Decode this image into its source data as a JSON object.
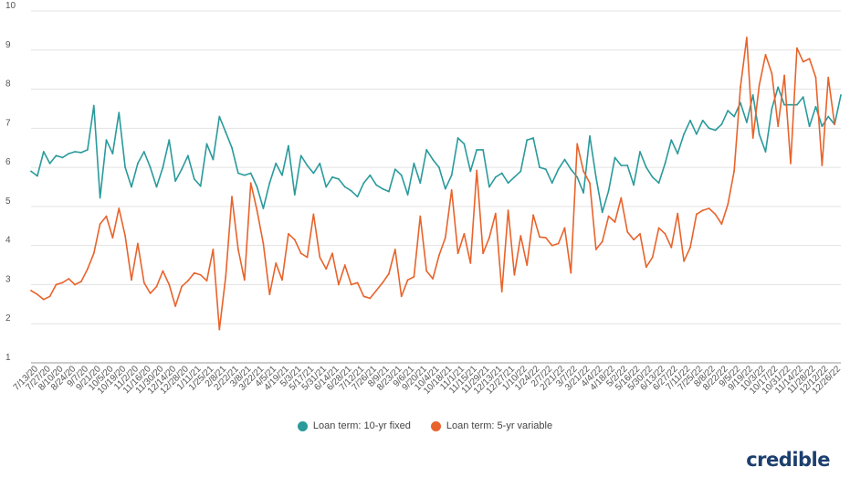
{
  "chart_data": {
    "type": "line",
    "ylim": [
      1,
      10
    ],
    "yticks": [
      1,
      2,
      3,
      4,
      5,
      6,
      7,
      8,
      9,
      10
    ],
    "grid": true,
    "legend_position": "bottom-center",
    "xtick_labels": [
      "7/13/20",
      "7/27/20",
      "8/10/20",
      "8/24/20",
      "9/7/20",
      "9/21/20",
      "10/5/20",
      "10/19/20",
      "11/2/20",
      "11/16/20",
      "11/30/20",
      "12/14/20",
      "12/28/20",
      "1/11/21",
      "1/25/21",
      "2/8/21",
      "2/22/21",
      "3/8/21",
      "3/22/21",
      "4/5/21",
      "4/19/21",
      "5/3/21",
      "5/17/21",
      "5/31/21",
      "6/14/21",
      "6/28/21",
      "7/12/21",
      "7/26/21",
      "8/9/21",
      "8/23/21",
      "9/6/21",
      "9/20/21",
      "10/4/21",
      "10/18/21",
      "11/1/21",
      "11/15/21",
      "11/29/21",
      "12/13/21",
      "12/27/21",
      "1/10/22",
      "1/24/22",
      "2/7/22",
      "2/21/22",
      "3/7/22",
      "3/21/22",
      "4/4/22",
      "4/18/22",
      "5/2/22",
      "5/16/22",
      "5/30/22",
      "6/13/22",
      "6/27/22",
      "7/11/22",
      "7/25/22",
      "8/8/22",
      "8/22/22",
      "9/5/22",
      "9/19/22",
      "10/3/22",
      "10/17/22",
      "10/31/22",
      "11/14/22",
      "11/28/22",
      "12/12/22",
      "12/26/22"
    ],
    "series": [
      {
        "name": "Loan term: 10-yr fixed",
        "color": "#2a9a9b",
        "values": [
          5.9,
          5.78,
          6.4,
          6.1,
          6.3,
          6.25,
          6.35,
          6.4,
          6.38,
          6.45,
          7.58,
          5.22,
          6.7,
          6.35,
          7.4,
          6.0,
          5.5,
          6.1,
          6.4,
          6.0,
          5.5,
          6.0,
          6.7,
          5.65,
          5.95,
          6.3,
          5.7,
          5.52,
          6.6,
          6.2,
          7.3,
          6.9,
          6.5,
          5.85,
          5.8,
          5.85,
          5.5,
          4.95,
          5.6,
          6.1,
          5.8,
          6.55,
          5.3,
          6.3,
          6.05,
          5.85,
          6.1,
          5.5,
          5.75,
          5.7,
          5.5,
          5.4,
          5.25,
          5.6,
          5.8,
          5.55,
          5.45,
          5.38,
          5.95,
          5.8,
          5.3,
          6.1,
          5.6,
          6.45,
          6.2,
          6.0,
          5.45,
          5.8,
          6.75,
          6.6,
          5.9,
          6.45,
          6.45,
          5.5,
          5.75,
          5.85,
          5.6,
          5.75,
          5.9,
          6.7,
          6.75,
          6.0,
          5.95,
          5.6,
          5.95,
          6.2,
          5.95,
          5.75,
          5.35,
          6.8,
          5.75,
          4.85,
          5.4,
          6.25,
          6.05,
          6.05,
          5.55,
          6.4,
          6.0,
          5.75,
          5.6,
          6.1,
          6.7,
          6.35,
          6.85,
          7.2,
          6.85,
          7.2,
          7.0,
          6.95,
          7.1,
          7.45,
          7.3,
          7.65,
          7.15,
          7.85,
          6.85,
          6.4,
          7.5,
          8.05,
          7.6,
          7.6,
          7.6,
          7.8,
          7.05,
          7.55,
          7.05,
          7.3,
          7.1,
          7.85
        ]
      },
      {
        "name": "Loan term: 5-yr variable",
        "color": "#e8632b",
        "values": [
          2.85,
          2.75,
          2.62,
          2.7,
          3.0,
          3.05,
          3.15,
          3.0,
          3.08,
          3.4,
          3.8,
          4.55,
          4.75,
          4.2,
          4.95,
          4.25,
          3.12,
          4.05,
          3.05,
          2.78,
          2.95,
          3.35,
          3.0,
          2.45,
          2.95,
          3.1,
          3.3,
          3.25,
          3.1,
          3.9,
          1.85,
          3.2,
          5.25,
          3.9,
          3.12,
          5.6,
          4.9,
          4.05,
          2.75,
          3.55,
          3.12,
          4.3,
          4.15,
          3.8,
          3.7,
          4.8,
          3.7,
          3.4,
          3.8,
          3.0,
          3.5,
          3.0,
          3.05,
          2.7,
          2.65,
          2.85,
          3.05,
          3.28,
          3.9,
          2.7,
          3.12,
          3.2,
          4.75,
          3.35,
          3.15,
          3.75,
          4.2,
          5.42,
          3.8,
          4.3,
          3.55,
          5.92,
          3.8,
          4.2,
          4.82,
          2.82,
          4.9,
          3.25,
          4.25,
          3.5,
          4.78,
          4.22,
          4.2,
          4.0,
          4.05,
          4.45,
          3.3,
          6.6,
          5.9,
          5.6,
          3.9,
          4.1,
          4.75,
          4.6,
          5.22,
          4.35,
          4.15,
          4.3,
          3.45,
          3.7,
          4.45,
          4.3,
          3.95,
          4.82,
          3.6,
          3.95,
          4.8,
          4.9,
          4.95,
          4.8,
          4.55,
          5.05,
          5.9,
          8.05,
          9.32,
          6.75,
          8.1,
          8.88,
          8.4,
          7.05,
          8.35,
          6.1,
          9.05,
          8.7,
          8.78,
          8.3,
          6.05,
          8.3,
          7.1
        ]
      }
    ]
  },
  "brand": {
    "logo_text": "credible"
  }
}
